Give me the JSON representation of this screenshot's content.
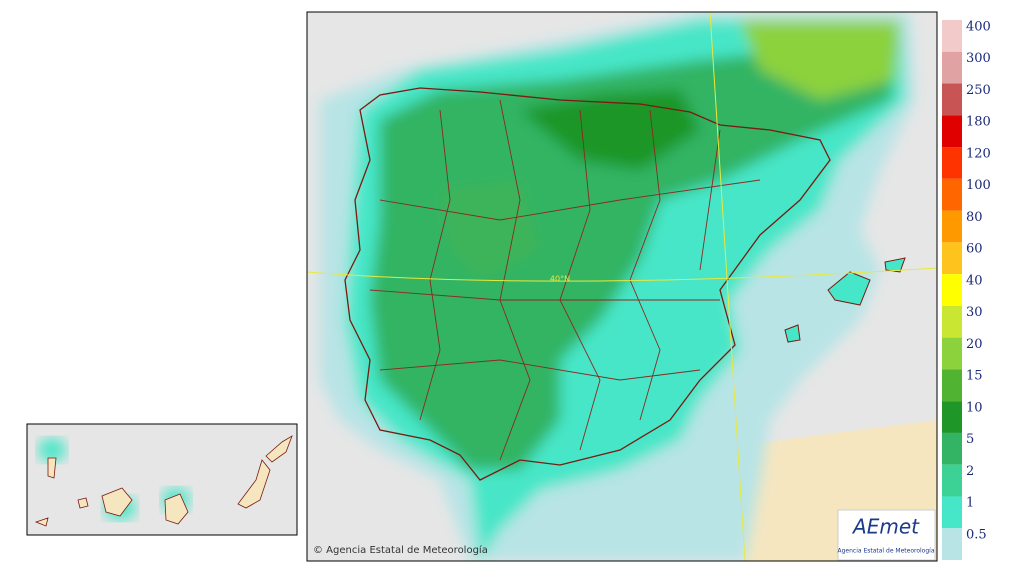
{
  "map": {
    "graticule_label": "40°N",
    "credit": "© Agencia Estatal de Meteorología",
    "logo": {
      "mark": "AEmet",
      "name": "Agencia Estatal de Meteorología"
    }
  },
  "legend": {
    "levels": [
      400,
      300,
      250,
      180,
      120,
      100,
      80,
      60,
      40,
      30,
      20,
      15,
      10,
      5,
      2,
      1,
      0.5
    ],
    "colors": [
      "#f2caca",
      "#e0a2a2",
      "#c85454",
      "#e00000",
      "#ff3300",
      "#ff6600",
      "#ff9900",
      "#ffc31e",
      "#ffff00",
      "#c8e632",
      "#8cd23c",
      "#50b432",
      "#1e9628",
      "#32b464",
      "#3cd296",
      "#46e6c8",
      "#b8e4e6"
    ]
  }
}
